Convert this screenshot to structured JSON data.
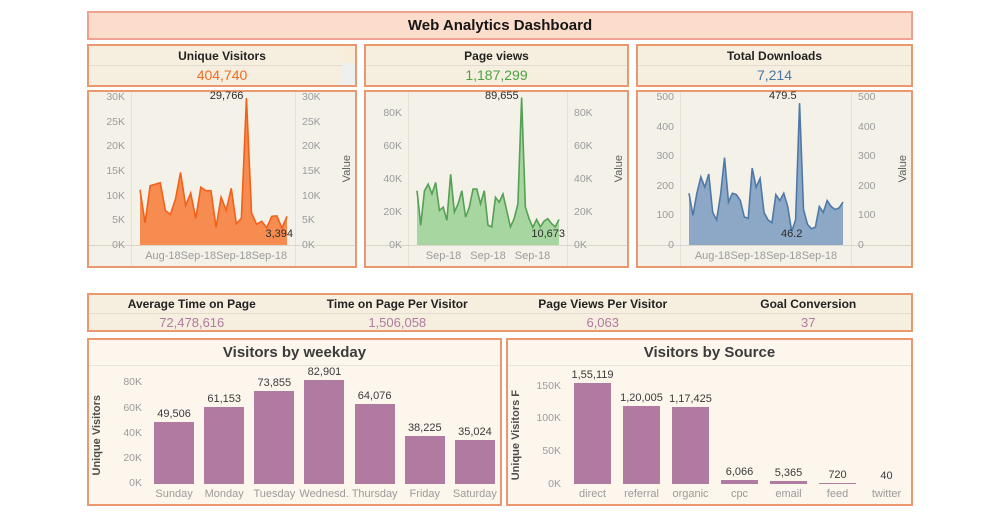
{
  "title": "Web Analytics Dashboard",
  "kpis": [
    {
      "label": "Unique Visitors",
      "value": "404,740",
      "color": "#ee6c24"
    },
    {
      "label": "Page views",
      "value": "1,187,299",
      "color": "#4ca145"
    },
    {
      "label": "Total Downloads",
      "value": "7,214",
      "color": "#4a77a5"
    }
  ],
  "kpis2": [
    {
      "label": "Average Time on Page",
      "value": "72,478,616"
    },
    {
      "label": "Time on Page Per Visitor",
      "value": "1,506,058"
    },
    {
      "label": "Page Views Per Visitor",
      "value": "6,063"
    },
    {
      "label": "Goal Conversion",
      "value": "37"
    }
  ],
  "kpi2_value_color": "#b07aa1",
  "chart_data": [
    {
      "type": "area",
      "name": "unique-visitors-trend",
      "title": "Unique Visitors",
      "ylabel": "Value",
      "ylim": [
        0,
        31000
      ],
      "yticks": [
        {
          "v": 0,
          "label": "0K"
        },
        {
          "v": 5000,
          "label": "5K"
        },
        {
          "v": 10000,
          "label": "10K"
        },
        {
          "v": 15000,
          "label": "15K"
        },
        {
          "v": 20000,
          "label": "20K"
        },
        {
          "v": 25000,
          "label": "25K"
        },
        {
          "v": 30000,
          "label": "30K"
        }
      ],
      "xticks": [
        "Aug-18",
        "Sep-18",
        "Sep-18",
        "Sep-18"
      ],
      "values": [
        11200,
        4500,
        12000,
        12300,
        12600,
        7000,
        6200,
        9300,
        14700,
        8000,
        10500,
        5400,
        11700,
        11000,
        11000,
        3600,
        9700,
        7000,
        11500,
        4300,
        5400,
        29766,
        6500,
        4200,
        4800,
        3500,
        5800,
        5900,
        3394,
        5800
      ],
      "annotations": {
        "max": "29,766",
        "min": "3,394"
      },
      "fill": "#f78c50",
      "stroke": "#f2601a"
    },
    {
      "type": "area",
      "name": "page-views-trend",
      "title": "Page views",
      "ylabel": "Value",
      "ylim": [
        0,
        93000
      ],
      "yticks": [
        {
          "v": 0,
          "label": "0K"
        },
        {
          "v": 20000,
          "label": "20K"
        },
        {
          "v": 40000,
          "label": "40K"
        },
        {
          "v": 60000,
          "label": "60K"
        },
        {
          "v": 80000,
          "label": "80K"
        }
      ],
      "xticks": [
        "Sep-18",
        "Sep-18",
        "Sep-18"
      ],
      "values": [
        33000,
        12000,
        33000,
        37000,
        31000,
        38000,
        21000,
        23000,
        15000,
        43000,
        20000,
        25000,
        33000,
        17000,
        23000,
        34000,
        34000,
        25000,
        33000,
        12000,
        11000,
        29000,
        26000,
        31000,
        21000,
        11000,
        16000,
        25000,
        89655,
        23000,
        16000,
        10673,
        15500,
        11000,
        14500,
        16000,
        13000,
        11000,
        15500
      ],
      "annotations": {
        "max": "89,655",
        "min": "10,673"
      },
      "fill": "#a8d6a0",
      "stroke": "#55a054"
    },
    {
      "type": "area",
      "name": "total-downloads-trend",
      "title": "Total Downloads",
      "ylabel": "Value",
      "ylim": [
        0,
        517
      ],
      "yticks": [
        {
          "v": 0,
          "label": "0"
        },
        {
          "v": 100,
          "label": "100"
        },
        {
          "v": 200,
          "label": "200"
        },
        {
          "v": 300,
          "label": "300"
        },
        {
          "v": 400,
          "label": "400"
        },
        {
          "v": 500,
          "label": "500"
        }
      ],
      "xticks": [
        "Aug-18",
        "Sep-18",
        "Sep-18",
        "Sep-18"
      ],
      "values": [
        175,
        100,
        175,
        230,
        195,
        240,
        110,
        85,
        170,
        295,
        145,
        175,
        170,
        150,
        95,
        90,
        260,
        195,
        225,
        110,
        85,
        75,
        170,
        150,
        175,
        130,
        46.2,
        85,
        479.5,
        120,
        70,
        55,
        60,
        130,
        110,
        150,
        130,
        120,
        125,
        145
      ],
      "annotations": {
        "max": "479.5",
        "min": "46.2"
      },
      "fill": "#8da8c6",
      "stroke": "#4e79a7"
    },
    {
      "type": "bar",
      "name": "visitors-by-weekday",
      "title": "Visitors by weekday",
      "ylabel": "Unique Visitors",
      "ylim": [
        0,
        93000
      ],
      "yticks": [
        {
          "v": 0,
          "label": "0K"
        },
        {
          "v": 20000,
          "label": "20K"
        },
        {
          "v": 40000,
          "label": "40K"
        },
        {
          "v": 60000,
          "label": "60K"
        },
        {
          "v": 80000,
          "label": "80K"
        }
      ],
      "categories": [
        "Sunday",
        "Monday",
        "Tuesday",
        "Wednesd..",
        "Thursday",
        "Friday",
        "Saturday"
      ],
      "values": [
        49506,
        61153,
        73855,
        82901,
        64076,
        38225,
        35024
      ],
      "labels": [
        "49,506",
        "61,153",
        "73,855",
        "82,901",
        "64,076",
        "38,225",
        "35,024"
      ],
      "bar_color": "#b07aa1"
    },
    {
      "type": "bar",
      "name": "visitors-by-source",
      "title": "Visitors by Source",
      "ylabel": "Unique Visitors F",
      "ylim": [
        0,
        180000
      ],
      "yticks": [
        {
          "v": 0,
          "label": "0K"
        },
        {
          "v": 50000,
          "label": "50K"
        },
        {
          "v": 100000,
          "label": "100K"
        },
        {
          "v": 150000,
          "label": "150K"
        }
      ],
      "categories": [
        "direct",
        "referral",
        "organic",
        "cpc",
        "email",
        "feed",
        "twitter"
      ],
      "values": [
        155119,
        120005,
        117425,
        6066,
        5365,
        720,
        40
      ],
      "labels": [
        "1,55,119",
        "1,20,005",
        "1,17,425",
        "6,066",
        "5,365",
        "720",
        "40"
      ],
      "bar_color": "#b07aa1"
    }
  ]
}
